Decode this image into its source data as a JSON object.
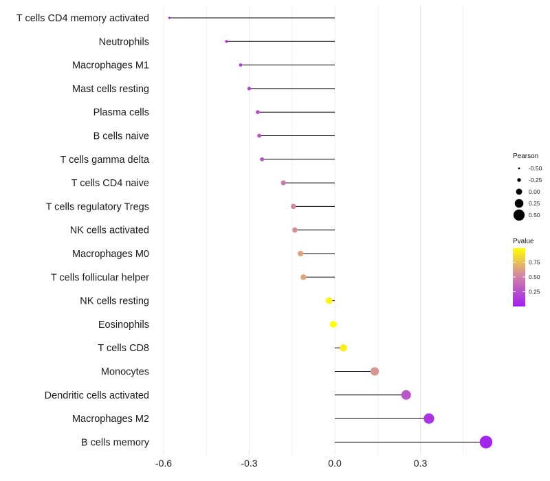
{
  "chart_data": {
    "type": "lollipop",
    "categories": [
      "T cells CD4 memory activated",
      "Neutrophils",
      "Macrophages M1",
      "Mast cells resting",
      "Plasma cells",
      "B cells naive",
      "T cells gamma delta",
      "T cells CD4 naive",
      "T cells regulatory  Tregs",
      "NK cells activated",
      "Macrophages M0",
      "T cells follicular helper",
      "NK cells resting",
      "Eosinophils",
      "T cells CD8",
      "Monocytes",
      "Dendritic cells activated",
      "Macrophages M2",
      "B cells memory"
    ],
    "pearson": [
      -0.58,
      -0.38,
      -0.33,
      -0.3,
      -0.27,
      -0.265,
      -0.255,
      -0.18,
      -0.145,
      -0.14,
      -0.12,
      -0.11,
      -0.02,
      -0.005,
      0.03,
      0.14,
      0.25,
      0.33,
      0.53
    ],
    "pvalue": [
      0.01,
      0.08,
      0.12,
      0.15,
      0.2,
      0.22,
      0.24,
      0.4,
      0.5,
      0.52,
      0.6,
      0.62,
      0.95,
      0.99,
      0.93,
      0.55,
      0.25,
      0.1,
      0.02
    ],
    "xlim": [
      -0.6,
      0.53
    ],
    "xticks": [
      -0.6,
      -0.3,
      0.0,
      0.3
    ],
    "xtick_labels": [
      "-0.6",
      "-0.3",
      "0.0",
      "0.3"
    ],
    "xlabel": "",
    "ylabel": "",
    "size_legend": {
      "title": "Pearson",
      "entries": [
        "-0.50",
        "-0.25",
        "0.00",
        "0.25",
        "0.50"
      ]
    },
    "color_legend": {
      "title": "Pvalue",
      "labels": [
        "0.75",
        "0.50",
        "0.25"
      ],
      "low_color": "#a020f0",
      "mid_color": "#d48aa0",
      "high_color": "#ffff00"
    }
  }
}
